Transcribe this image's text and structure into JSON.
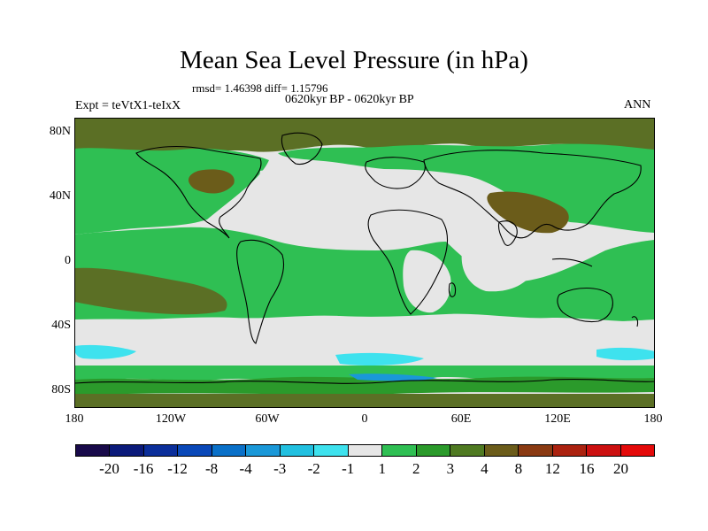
{
  "title": "Mean Sea Level Pressure (in hPa)",
  "stats": "rmsd= 1.46398  diff= 1.15796",
  "period": "0620kyr BP - 0620kyr BP",
  "experiment": "Expt = teVtX1-teIxX",
  "season": "ANN",
  "y_ticks": [
    "80N",
    "40N",
    "0",
    "40S",
    "80S"
  ],
  "x_ticks": [
    "180",
    "120W",
    "60W",
    "0",
    "60E",
    "120E",
    "180"
  ],
  "colorbar": {
    "labels": [
      "-20",
      "-16",
      "-12",
      "-8",
      "-4",
      "-3",
      "-2",
      "-1",
      "1",
      "2",
      "3",
      "4",
      "8",
      "12",
      "16",
      "20"
    ],
    "colors": [
      "#180a4a",
      "#0b1a7a",
      "#0b2e9a",
      "#0a48b8",
      "#0a70c8",
      "#1a98d8",
      "#22c0e0",
      "#3ee2ee",
      "#e6e6e6",
      "#2fbf53",
      "#2b9a2b",
      "#4f7a22",
      "#6b5c1a",
      "#8a3a12",
      "#ab220f",
      "#cc1010",
      "#e40a0a"
    ]
  },
  "field_colors": {
    "neutral": "#e6e6e6",
    "green": "#2fbf53",
    "darkgreen": "#2b9a2b",
    "olive": "#5b6f25",
    "brown": "#6b5c1a",
    "cyan": "#3ee2ee",
    "blue": "#1a98d8"
  }
}
